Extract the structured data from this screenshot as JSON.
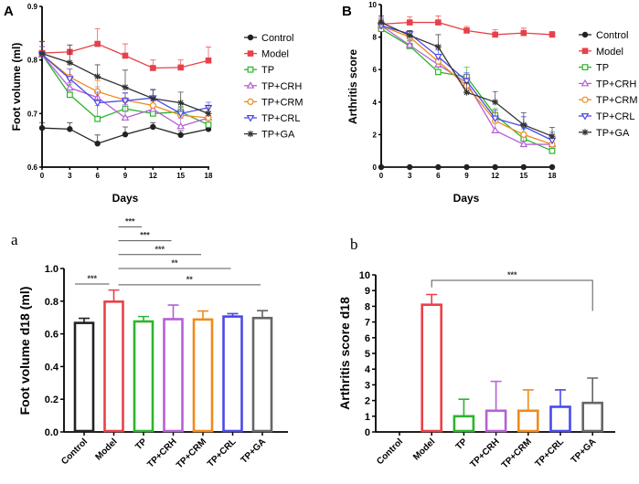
{
  "colors": {
    "Control": "#222222",
    "Model": "#e8414a",
    "TP": "#2cb52c",
    "TP+CRH": "#b660d6",
    "TP+CRM": "#f08a1c",
    "TP+CRL": "#4a4ae8",
    "TP+GA": "#333333"
  },
  "chart_data": [
    {
      "panel": "A",
      "type": "line",
      "xlabel": "Days",
      "ylabel": "Foot volume (ml)",
      "x": [
        0,
        3,
        6,
        9,
        12,
        15,
        18
      ],
      "xticks": [
        0,
        3,
        6,
        9,
        12,
        15,
        18
      ],
      "ylim": [
        0.6,
        0.9
      ],
      "yticks": [
        "0.6",
        "0.7",
        "0.8",
        "0.9"
      ],
      "legend": "right",
      "series": [
        {
          "name": "Control",
          "marker": "filled-circle",
          "values": [
            0.673,
            0.671,
            0.644,
            0.661,
            0.675,
            0.66,
            0.671
          ],
          "err": [
            0.01,
            0.012,
            0.016,
            0.014,
            0.008,
            0.008,
            0.006
          ]
        },
        {
          "name": "Model",
          "marker": "filled-square",
          "values": [
            0.813,
            0.815,
            0.83,
            0.808,
            0.785,
            0.786,
            0.799
          ],
          "err": [
            0.022,
            0.013,
            0.028,
            0.022,
            0.015,
            0.014,
            0.025
          ]
        },
        {
          "name": "TP",
          "marker": "open-square",
          "values": [
            0.81,
            0.735,
            0.69,
            0.709,
            0.7,
            0.703,
            0.679
          ],
          "err": [
            0.015,
            0.02,
            0.025,
            0.02,
            0.012,
            0.01,
            0.01
          ]
        },
        {
          "name": "TP+CRH",
          "marker": "open-triangle-up",
          "values": [
            0.81,
            0.748,
            0.73,
            0.692,
            0.708,
            0.676,
            0.692
          ],
          "err": [
            0.015,
            0.01,
            0.02,
            0.025,
            0.015,
            0.015,
            0.012
          ]
        },
        {
          "name": "TP+CRM",
          "marker": "open-circle",
          "values": [
            0.81,
            0.768,
            0.741,
            0.725,
            0.715,
            0.697,
            0.692
          ],
          "err": [
            0.015,
            0.015,
            0.02,
            0.012,
            0.012,
            0.012,
            0.012
          ]
        },
        {
          "name": "TP+CRL",
          "marker": "open-triangle-down",
          "values": [
            0.81,
            0.765,
            0.72,
            0.724,
            0.729,
            0.7,
            0.711
          ],
          "err": [
            0.015,
            0.018,
            0.02,
            0.015,
            0.015,
            0.012,
            0.01
          ]
        },
        {
          "name": "TP+GA",
          "marker": "asterisk",
          "values": [
            0.812,
            0.795,
            0.769,
            0.749,
            0.728,
            0.72,
            0.7
          ],
          "err": [
            0.022,
            0.033,
            0.022,
            0.032,
            0.017,
            0.02,
            0.015
          ]
        }
      ]
    },
    {
      "panel": "B",
      "type": "line",
      "xlabel": "Days",
      "ylabel": "Arthritis score",
      "x": [
        0,
        3,
        6,
        9,
        12,
        15,
        18
      ],
      "xticks": [
        0,
        3,
        6,
        9,
        12,
        15,
        18
      ],
      "ylim": [
        0,
        10
      ],
      "yticks": [
        "0",
        "2",
        "4",
        "6",
        "8",
        "10"
      ],
      "legend": "right",
      "series": [
        {
          "name": "Control",
          "marker": "filled-circle",
          "values": [
            0,
            0,
            0,
            0,
            0,
            0,
            0
          ],
          "err": [
            0,
            0,
            0,
            0,
            0,
            0,
            0
          ]
        },
        {
          "name": "Model",
          "marker": "filled-square",
          "values": [
            8.8,
            8.9,
            8.9,
            8.4,
            8.15,
            8.25,
            8.15
          ],
          "err": [
            0.4,
            0.35,
            0.4,
            0.25,
            0.3,
            0.3,
            0.2
          ]
        },
        {
          "name": "TP",
          "marker": "open-square",
          "values": [
            8.5,
            7.45,
            5.85,
            5.55,
            3.2,
            1.75,
            1.0
          ],
          "err": [
            0.4,
            0.3,
            0.3,
            0.6,
            0.4,
            0.6,
            0.5
          ]
        },
        {
          "name": "TP+CRH",
          "marker": "open-triangle-up",
          "values": [
            8.7,
            7.5,
            6.3,
            5.2,
            2.25,
            1.4,
            1.4
          ],
          "err": [
            0.4,
            0.3,
            0.4,
            0.5,
            0.6,
            0.5,
            0.4
          ]
        },
        {
          "name": "TP+CRM",
          "marker": "open-circle",
          "values": [
            8.7,
            8.0,
            6.5,
            5.0,
            2.85,
            2.0,
            1.4
          ],
          "err": [
            0.4,
            0.3,
            0.4,
            0.5,
            0.5,
            0.5,
            0.5
          ]
        },
        {
          "name": "TP+CRL",
          "marker": "open-triangle-down",
          "values": [
            8.7,
            8.2,
            6.8,
            5.3,
            3.0,
            2.5,
            1.65
          ],
          "err": [
            0.4,
            0.2,
            0.4,
            0.5,
            0.5,
            0.6,
            0.5
          ]
        },
        {
          "name": "TP+GA",
          "marker": "asterisk",
          "values": [
            8.9,
            8.1,
            7.4,
            4.6,
            4.0,
            2.6,
            1.9
          ],
          "err": [
            0.4,
            0.3,
            0.75,
            0.6,
            0.65,
            0.75,
            0.55
          ]
        }
      ]
    },
    {
      "panel": "a",
      "type": "bar",
      "ylabel": "Foot volume d18 (ml)",
      "categories": [
        "Control",
        "Model",
        "TP",
        "TP+CRH",
        "TP+CRM",
        "TP+CRL",
        "TP+GA"
      ],
      "values": [
        0.667,
        0.797,
        0.676,
        0.69,
        0.688,
        0.706,
        0.697
      ],
      "err": [
        0.028,
        0.071,
        0.03,
        0.086,
        0.052,
        0.018,
        0.045
      ],
      "ylim": [
        0,
        1.0
      ],
      "yticks": [
        "0.0",
        "0.2",
        "0.4",
        "0.6",
        "0.8",
        "1.0"
      ],
      "significance": [
        {
          "from": "Control",
          "to": "Model",
          "label": "***",
          "level": 0.905
        },
        {
          "from": "Model",
          "to": "TP",
          "label": "***",
          "level": 1.255
        },
        {
          "from": "Model",
          "to": "TP+CRH",
          "label": "***",
          "level": 1.17
        },
        {
          "from": "Model",
          "to": "TP+CRM",
          "label": "***",
          "level": 1.085
        },
        {
          "from": "Model",
          "to": "TP+CRL",
          "label": "**",
          "level": 1.0
        },
        {
          "from": "Model",
          "to": "TP+GA",
          "label": "**",
          "level": 0.9
        }
      ]
    },
    {
      "panel": "b",
      "type": "bar",
      "ylabel": "Arthritis score d18",
      "categories": [
        "Control",
        "Model",
        "TP",
        "TP+CRH",
        "TP+CRM",
        "TP+CRL",
        "TP+GA"
      ],
      "values": [
        0,
        8.1,
        1.0,
        1.35,
        1.35,
        1.6,
        1.85
      ],
      "err": [
        0,
        0.65,
        1.08,
        1.87,
        1.33,
        1.08,
        1.58
      ],
      "ylim": [
        0,
        10
      ],
      "yticks": [
        "0",
        "1",
        "2",
        "3",
        "4",
        "5",
        "6",
        "7",
        "8",
        "9",
        "10"
      ],
      "significance": [
        {
          "from": "Model",
          "to": "TP+GA",
          "label": "***",
          "level": 9.65,
          "from_end": 9.2,
          "to_end": 7.7
        }
      ]
    }
  ]
}
